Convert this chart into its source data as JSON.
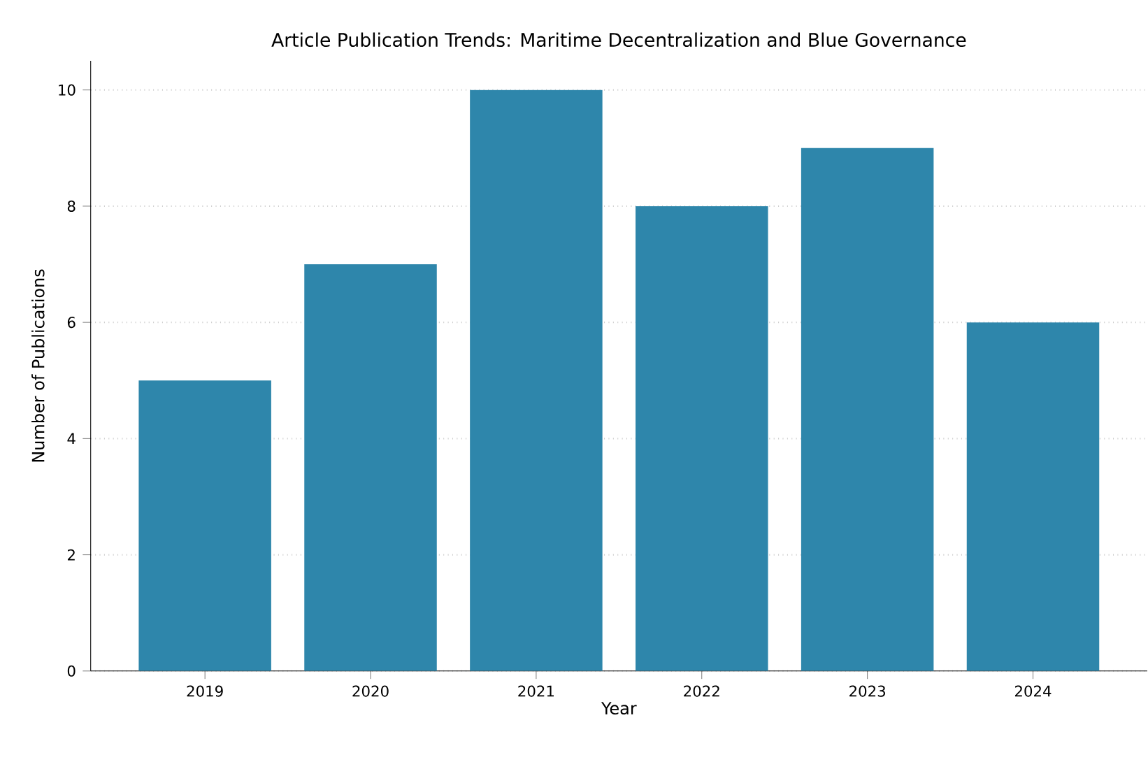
{
  "chart_data": {
    "type": "bar",
    "title": "Article Publication Trends: Maritime Decentralization and Blue Governance",
    "xlabel": "Year",
    "ylabel": "Number of Publications",
    "categories": [
      "2019",
      "2020",
      "2021",
      "2022",
      "2023",
      "2024"
    ],
    "values": [
      5,
      7,
      10,
      8,
      9,
      6
    ],
    "color": "#2e86ab",
    "ylim": [
      0,
      10.5
    ],
    "yticks": [
      0,
      2,
      4,
      6,
      8,
      10
    ],
    "grid": "y"
  }
}
